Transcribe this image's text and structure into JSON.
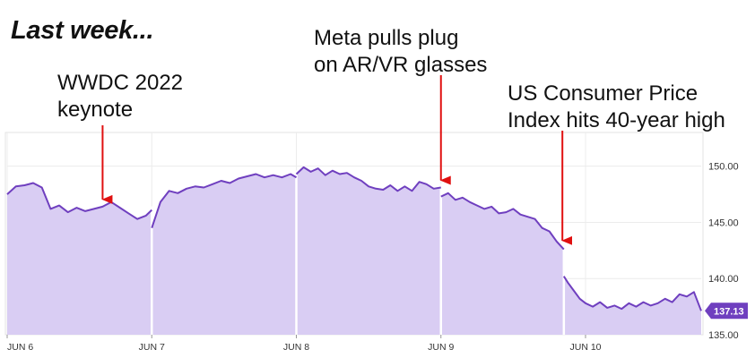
{
  "headline": "Last week...",
  "annotations": [
    {
      "lines": [
        "WWDC 2022",
        "keynote"
      ],
      "x": 0.66
    },
    {
      "lines": [
        "Meta pulls plug",
        "on AR/VR glasses"
      ],
      "x": 3.0
    },
    {
      "lines": [
        "US Consumer Price",
        "Index hits 40-year high"
      ],
      "x": 3.84
    }
  ],
  "colors": {
    "line": "#6f3fbf",
    "fill": "#d9cdf3",
    "arrow": "#e01010",
    "badge": "#6f3fbf",
    "divider": "#ffffff"
  },
  "chart_data": {
    "type": "area",
    "title": "",
    "xlabel": "",
    "ylabel": "",
    "x_tick_labels": [
      {
        "x": 0,
        "label": "JUN 6"
      },
      {
        "x": 1,
        "label": "JUN 7"
      },
      {
        "x": 2,
        "label": "JUN 8"
      },
      {
        "x": 3,
        "label": "JUN 9"
      },
      {
        "x": 4,
        "label": "JUN 10"
      }
    ],
    "y_ticks": [
      150,
      145,
      140,
      135
    ],
    "y_tick_labels": [
      "150.00",
      "145.00",
      "140.00",
      "135.00"
    ],
    "xlim": [
      0,
      4.8
    ],
    "ylim": [
      135,
      153
    ],
    "last_price_label": "137.13",
    "grid": true,
    "series": [
      {
        "segment": "JUN 6",
        "x": [
          0,
          0.06,
          0.12,
          0.18,
          0.24,
          0.3,
          0.36,
          0.42,
          0.48,
          0.54,
          0.6,
          0.66,
          0.72,
          0.78,
          0.84,
          0.9,
          0.96,
          1.0
        ],
        "y": [
          147.5,
          148.2,
          148.3,
          148.5,
          148.1,
          146.2,
          146.5,
          145.9,
          146.3,
          146.0,
          146.2,
          146.4,
          146.8,
          146.3,
          145.8,
          145.3,
          145.6,
          146.1
        ]
      },
      {
        "segment": "JUN 7",
        "x": [
          1.0,
          1.06,
          1.12,
          1.18,
          1.24,
          1.3,
          1.36,
          1.42,
          1.48,
          1.54,
          1.6,
          1.66,
          1.72,
          1.78,
          1.84,
          1.9,
          1.96,
          2.0
        ],
        "y": [
          144.5,
          146.8,
          147.8,
          147.6,
          148.0,
          148.2,
          148.1,
          148.4,
          148.7,
          148.5,
          148.9,
          149.1,
          149.3,
          149.0,
          149.2,
          149.0,
          149.3,
          149.0
        ]
      },
      {
        "segment": "JUN 8",
        "x": [
          2.0,
          2.05,
          2.1,
          2.15,
          2.2,
          2.25,
          2.3,
          2.35,
          2.4,
          2.45,
          2.5,
          2.55,
          2.6,
          2.65,
          2.7,
          2.75,
          2.8,
          2.85,
          2.9,
          2.95,
          3.0
        ],
        "y": [
          149.3,
          149.9,
          149.5,
          149.8,
          149.2,
          149.6,
          149.3,
          149.4,
          149.0,
          148.7,
          148.2,
          148.0,
          147.9,
          148.3,
          147.8,
          148.2,
          147.8,
          148.6,
          148.4,
          148.0,
          148.1
        ]
      },
      {
        "segment": "JUN 9",
        "x": [
          3.0,
          3.05,
          3.1,
          3.15,
          3.2,
          3.25,
          3.3,
          3.35,
          3.4,
          3.45,
          3.5,
          3.55,
          3.6,
          3.65,
          3.7,
          3.75,
          3.8,
          3.85
        ],
        "y": [
          147.3,
          147.6,
          147.0,
          147.2,
          146.8,
          146.5,
          146.2,
          146.4,
          145.8,
          145.9,
          146.2,
          145.7,
          145.5,
          145.3,
          144.5,
          144.2,
          143.3,
          142.6
        ]
      },
      {
        "segment": "JUN 10",
        "x": [
          3.85,
          3.88,
          3.92,
          3.96,
          4.0,
          4.05,
          4.1,
          4.15,
          4.2,
          4.25,
          4.3,
          4.35,
          4.4,
          4.45,
          4.5,
          4.55,
          4.6,
          4.65,
          4.7,
          4.75,
          4.8
        ],
        "y": [
          140.2,
          139.6,
          138.9,
          138.2,
          137.8,
          137.5,
          137.9,
          137.4,
          137.6,
          137.3,
          137.8,
          137.5,
          137.9,
          137.6,
          137.8,
          138.2,
          137.9,
          138.6,
          138.4,
          138.8,
          137.13
        ]
      }
    ]
  }
}
